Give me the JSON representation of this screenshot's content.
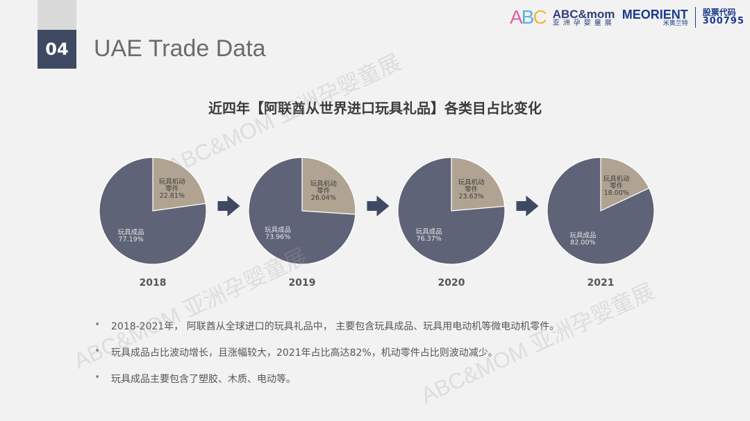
{
  "header": {
    "section_number": "04",
    "title": "UAE Trade Data",
    "logo_abc_text": "ABC&mom",
    "logo_abc_sub": "亚洲孕婴童展",
    "logo_meorient": "MEORIENT",
    "logo_meorient_sub": "米奥兰特",
    "stock_label": "股票代码",
    "stock_code": "300795"
  },
  "watermark_text": "ABC&MOM 亚洲孕婴童展",
  "chart_data": {
    "type": "pie",
    "title": "近四年【阿联酋从世界进口玩具礼品】各类目占比变化",
    "colors": {
      "parts": "#b0a392",
      "finished": "#5f6377"
    },
    "charts": [
      {
        "year": "2018",
        "slices": [
          {
            "label": "玩具机动零件",
            "value": 22.81,
            "display": "22.81%"
          },
          {
            "label": "玩具成品",
            "value": 77.19,
            "display": "77.19%"
          }
        ]
      },
      {
        "year": "2019",
        "slices": [
          {
            "label": "玩具机动零件",
            "value": 26.04,
            "display": "26.04%"
          },
          {
            "label": "玩具成品",
            "value": 73.96,
            "display": "73.96%"
          }
        ]
      },
      {
        "year": "2020",
        "slices": [
          {
            "label": "玩具机动零件",
            "value": 23.63,
            "display": "23.63%"
          },
          {
            "label": "玩具成品",
            "value": 76.37,
            "display": "76.37%"
          }
        ]
      },
      {
        "year": "2021",
        "slices": [
          {
            "label": "玩具机动零件",
            "value": 18.0,
            "display": "18.00%"
          },
          {
            "label": "玩具成品",
            "value": 82.0,
            "display": "82.00%"
          }
        ]
      }
    ]
  },
  "bullets": [
    "2018-2021年， 阿联酋从全球进口的玩具礼品中， 主要包含玩具成品、玩具用电动机等微电动机零件。",
    "玩具成品占比波动增长，且涨幅较大，2021年占比高达82%，机动零件占比则波动减少。",
    "玩具成品主要包含了塑胶、木质、电动等。"
  ]
}
